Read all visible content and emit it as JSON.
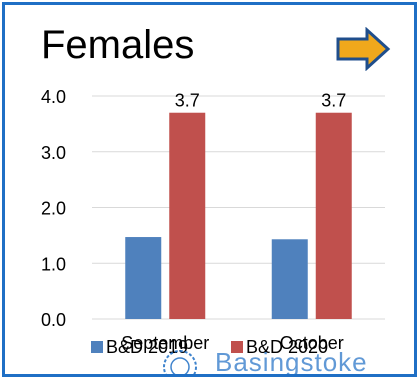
{
  "title": "Females",
  "watermark_text": "Basingstoke",
  "icons": {
    "arrow": "right-arrow-icon",
    "logo": "council-seal-icon"
  },
  "colors": {
    "border": "#1f6fc5",
    "arrow_fill": "#f0a81c",
    "arrow_stroke": "#1f4e8c"
  },
  "chart_data": {
    "type": "bar",
    "categories": [
      "September",
      "October"
    ],
    "series": [
      {
        "name": "B&D 2019",
        "values": [
          1.47,
          1.43
        ],
        "color": "#4f81bd"
      },
      {
        "name": "B&D 2020",
        "values": [
          3.7,
          3.7
        ],
        "color": "#c0504d"
      }
    ],
    "data_labels": [
      null,
      [
        "3.7",
        "3.7"
      ]
    ],
    "y_ticks": [
      "0.0",
      "1.0",
      "2.0",
      "3.0",
      "4.0"
    ],
    "ylim": [
      0,
      4
    ],
    "grid": true,
    "legend": "bottom"
  }
}
